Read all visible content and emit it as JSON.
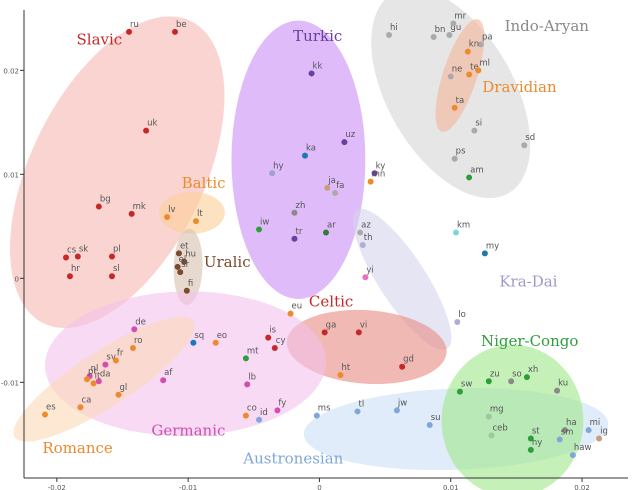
{
  "chart_data": {
    "type": "scatter",
    "title": "",
    "xlabel": "",
    "ylabel": "",
    "xlim": [
      -0.0225,
      0.0235
    ],
    "ylim": [
      -0.0192,
      0.0258
    ],
    "x_ticks": [
      -0.02,
      -0.01,
      0,
      0.01,
      0.02
    ],
    "y_ticks": [
      -0.01,
      0,
      0.01,
      0.02
    ],
    "x_tick_labels": [
      "-0.02",
      "-0.01",
      "0",
      "0.01",
      "0.02"
    ],
    "y_tick_labels": [
      "-0.01",
      "0",
      "0.01",
      "0.02"
    ],
    "families": [
      {
        "name": "Slavic",
        "color": "#c62828",
        "fill": "#f7b8b0",
        "label_at": [
          -0.0185,
          0.0225
        ],
        "ellipse": {
          "cx": -0.0154,
          "cy": 0.0102,
          "rx": 0.0128,
          "ry": 0.0066,
          "angle": -64
        }
      },
      {
        "name": "Baltic",
        "color": "#ee8a2e",
        "fill": "#fbcf9a",
        "label_at": [
          -0.0105,
          0.0087
        ],
        "ellipse": {
          "cx": -0.0097,
          "cy": 0.0063,
          "rx": 0.0025,
          "ry": 0.0016,
          "angle": 0
        }
      },
      {
        "name": "Uralic",
        "color": "#7b4a2e",
        "fill": "#d9c0ae",
        "label_at": [
          -0.0088,
          0.0011
        ],
        "ellipse": {
          "cx": -0.01,
          "cy": 0.0011,
          "rx": 0.0029,
          "ry": 0.0011,
          "angle": -88
        }
      },
      {
        "name": "Turkic",
        "color": "#6a3fa0",
        "fill": "#c98ef6",
        "label_at": [
          -0.002,
          0.0228
        ],
        "ellipse": {
          "cx": -0.0016,
          "cy": 0.0114,
          "rx": 0.0106,
          "ry": 0.0051,
          "angle": 90
        }
      },
      {
        "name": "Indo-Aryan",
        "color": "#8a8a8a",
        "fill": "#d6d6d6",
        "label_at": [
          0.0141,
          0.0238
        ],
        "ellipse": {
          "cx": 0.01,
          "cy": 0.0178,
          "rx": 0.0088,
          "ry": 0.0048,
          "angle": 60
        }
      },
      {
        "name": "Dravidian",
        "color": "#ee8a2e",
        "fill": "#f5b59a",
        "label_at": [
          0.0124,
          0.0179
        ],
        "ellipse": {
          "cx": 0.0107,
          "cy": 0.0195,
          "rx": 0.0045,
          "ry": 0.0013,
          "angle": -72
        }
      },
      {
        "name": "Kra-Dai",
        "color": "#9f98c8",
        "fill": "#d6d3ec",
        "label_at": [
          0.0137,
          -0.0008
        ],
        "ellipse": {
          "cx": 0.0063,
          "cy": -0.0001,
          "rx": 0.0063,
          "ry": 0.0018,
          "angle": 57
        }
      },
      {
        "name": "Celtic",
        "color": "#c62828",
        "fill": "#e88a82",
        "label_at": [
          -0.0008,
          -0.0027
        ],
        "ellipse": {
          "cx": 0.0036,
          "cy": -0.0066,
          "rx": 0.0061,
          "ry": 0.0028,
          "angle": 4
        }
      },
      {
        "name": "Germanic",
        "color": "#d04faf",
        "fill": "#f3c1ec",
        "label_at": [
          -0.0128,
          -0.0151
        ],
        "ellipse": {
          "cx": -0.0102,
          "cy": -0.0082,
          "rx": 0.0107,
          "ry": 0.0055,
          "angle": -1
        }
      },
      {
        "name": "Romance",
        "color": "#ee8a2e",
        "fill": "#fbd8b8",
        "label_at": [
          -0.0211,
          -0.0168
        ],
        "ellipse": {
          "cx": -0.0164,
          "cy": -0.0097,
          "rx": 0.0081,
          "ry": 0.0021,
          "angle": -33
        }
      },
      {
        "name": "Austronesian",
        "color": "#7fa7d8",
        "fill": "#cce0f6",
        "label_at": [
          -0.0058,
          -0.0178
        ],
        "ellipse": {
          "cx": 0.0104,
          "cy": -0.0145,
          "rx": 0.0116,
          "ry": 0.0031,
          "angle": -2
        }
      },
      {
        "name": "Niger-Congo",
        "color": "#2e9e3a",
        "fill": "#9ee88a",
        "label_at": [
          0.0123,
          -0.0065
        ],
        "ellipse": {
          "cx": 0.0147,
          "cy": -0.0137,
          "rx": 0.0054,
          "ry": 0.0058,
          "angle": 0
        }
      }
    ],
    "points": [
      {
        "label": "ru",
        "x": -0.0145,
        "y": 0.0237,
        "family": "Slavic",
        "color": "#c62828"
      },
      {
        "label": "be",
        "x": -0.011,
        "y": 0.0237,
        "family": "Slavic",
        "color": "#c62828"
      },
      {
        "label": "uk",
        "x": -0.0132,
        "y": 0.0142,
        "family": "Slavic",
        "color": "#c62828"
      },
      {
        "label": "bg",
        "x": -0.0168,
        "y": 0.0069,
        "family": "Slavic",
        "color": "#c62828"
      },
      {
        "label": "mk",
        "x": -0.0143,
        "y": 0.0062,
        "family": "Slavic",
        "color": "#c62828"
      },
      {
        "label": "cs",
        "x": -0.0193,
        "y": 0.002,
        "family": "Slavic",
        "color": "#c62828"
      },
      {
        "label": "sk",
        "x": -0.0184,
        "y": 0.0021,
        "family": "Slavic",
        "color": "#c62828"
      },
      {
        "label": "pl",
        "x": -0.0158,
        "y": 0.0021,
        "family": "Slavic",
        "color": "#c62828"
      },
      {
        "label": "hr",
        "x": -0.019,
        "y": 0.0002,
        "family": "Slavic",
        "color": "#c62828"
      },
      {
        "label": "sl",
        "x": -0.0158,
        "y": 0.0002,
        "family": "Slavic",
        "color": "#c62828"
      },
      {
        "label": "lv",
        "x": -0.0116,
        "y": 0.0059,
        "family": "Baltic",
        "color": "#ee8a2e"
      },
      {
        "label": "lt",
        "x": -0.0094,
        "y": 0.0055,
        "family": "Baltic",
        "color": "#ee8a2e"
      },
      {
        "label": "et",
        "x": -0.0107,
        "y": 0.0024,
        "family": "Uralic",
        "color": "#7b4a2e"
      },
      {
        "label": "hu",
        "x": -0.0103,
        "y": 0.0016,
        "family": "Uralic",
        "color": "#7b4a2e"
      },
      {
        "label": "el",
        "x": -0.0108,
        "y": 0.0011,
        "family": "Uralic",
        "color": "#7b4a2e"
      },
      {
        "label": "sr",
        "x": -0.0106,
        "y": 0.0006,
        "family": "Uralic",
        "color": "#7b4a2e"
      },
      {
        "label": "fi",
        "x": -0.0101,
        "y": -0.0012,
        "family": "Uralic",
        "color": "#7b4a2e"
      },
      {
        "label": "kk",
        "x": -0.0006,
        "y": 0.0197,
        "family": "Turkic",
        "color": "#6a3fa0"
      },
      {
        "label": "uz",
        "x": 0.0019,
        "y": 0.0131,
        "family": "Turkic",
        "color": "#6a3fa0"
      },
      {
        "label": "ka",
        "x": -0.0011,
        "y": 0.0118,
        "family": "Turkic",
        "color": "#1f78b4"
      },
      {
        "label": "hy",
        "x": -0.0036,
        "y": 0.0101,
        "family": "Turkic",
        "color": "#a0a0c8"
      },
      {
        "label": "ky",
        "x": 0.0042,
        "y": 0.0101,
        "family": "Turkic",
        "color": "#6a3fa0"
      },
      {
        "label": "mn",
        "x": 0.0039,
        "y": 0.0093,
        "family": "Turkic",
        "color": "#ee8a2e"
      },
      {
        "label": "ja",
        "x": 0.0006,
        "y": 0.0087,
        "family": "Turkic",
        "color": "#c99c80"
      },
      {
        "label": "fa",
        "x": 0.0012,
        "y": 0.0082,
        "family": "Turkic",
        "color": "#aaaaaa"
      },
      {
        "label": "zh",
        "x": -0.0019,
        "y": 0.0063,
        "family": "Turkic",
        "color": "#8a8a8a"
      },
      {
        "label": "tr",
        "x": -0.0019,
        "y": 0.0038,
        "family": "Turkic",
        "color": "#6a3fa0"
      },
      {
        "label": "ar",
        "x": 0.0005,
        "y": 0.0044,
        "family": "Turkic",
        "color": "#2e7d32"
      },
      {
        "label": "iw",
        "x": -0.0046,
        "y": 0.0047,
        "family": "Turkic",
        "color": "#2e9e3a"
      },
      {
        "label": "hi",
        "x": 0.0053,
        "y": 0.0234,
        "family": "Indo-Aryan",
        "color": "#aaaaaa"
      },
      {
        "label": "bn",
        "x": 0.0087,
        "y": 0.0232,
        "family": "Indo-Aryan",
        "color": "#aaaaaa"
      },
      {
        "label": "gu",
        "x": 0.0099,
        "y": 0.0234,
        "family": "Indo-Aryan",
        "color": "#aaaaaa"
      },
      {
        "label": "mr",
        "x": 0.0102,
        "y": 0.0245,
        "family": "Indo-Aryan",
        "color": "#aaaaaa"
      },
      {
        "label": "pa",
        "x": 0.0123,
        "y": 0.0225,
        "family": "Indo-Aryan",
        "color": "#aaaaaa"
      },
      {
        "label": "kn",
        "x": 0.0113,
        "y": 0.0218,
        "family": "Dravidian",
        "color": "#ee8a2e"
      },
      {
        "label": "ne",
        "x": 0.01,
        "y": 0.0194,
        "family": "Indo-Aryan",
        "color": "#aaaaaa"
      },
      {
        "label": "te",
        "x": 0.0114,
        "y": 0.0196,
        "family": "Dravidian",
        "color": "#ee8a2e"
      },
      {
        "label": "ml",
        "x": 0.0121,
        "y": 0.02,
        "family": "Dravidian",
        "color": "#ee8a2e"
      },
      {
        "label": "ta",
        "x": 0.0103,
        "y": 0.0164,
        "family": "Dravidian",
        "color": "#ee8a2e"
      },
      {
        "label": "si",
        "x": 0.0118,
        "y": 0.0142,
        "family": "Indo-Aryan",
        "color": "#aaaaaa"
      },
      {
        "label": "sd",
        "x": 0.0156,
        "y": 0.0128,
        "family": "Indo-Aryan",
        "color": "#aaaaaa"
      },
      {
        "label": "ps",
        "x": 0.0103,
        "y": 0.0115,
        "family": "Indo-Aryan",
        "color": "#aaaaaa"
      },
      {
        "label": "am",
        "x": 0.0114,
        "y": 0.0097,
        "family": "Indo-Aryan",
        "color": "#2e9e3a"
      },
      {
        "label": "az",
        "x": 0.0031,
        "y": 0.0044,
        "family": "Kra-Dai",
        "color": "#aaaaaa"
      },
      {
        "label": "th",
        "x": 0.0033,
        "y": 0.0032,
        "family": "Kra-Dai",
        "color": "#b0acd6"
      },
      {
        "label": "km",
        "x": 0.0104,
        "y": 0.0044,
        "family": "Kra-Dai",
        "color": "#80d4d4"
      },
      {
        "label": "my",
        "x": 0.0126,
        "y": 0.0024,
        "family": "Kra-Dai",
        "color": "#1f78b4"
      },
      {
        "label": "yi",
        "x": 0.0035,
        "y": 0.0001,
        "family": "Kra-Dai",
        "color": "#e870c0"
      },
      {
        "label": "lo",
        "x": 0.0105,
        "y": -0.0042,
        "family": "Kra-Dai",
        "color": "#b0acd6"
      },
      {
        "label": "eu",
        "x": -0.0022,
        "y": -0.0034,
        "family": "Celtic",
        "color": "#ee8a2e"
      },
      {
        "label": "is",
        "x": -0.0039,
        "y": -0.0057,
        "family": "Celtic",
        "color": "#c62828"
      },
      {
        "label": "cy",
        "x": -0.0034,
        "y": -0.0067,
        "family": "Celtic",
        "color": "#c62828"
      },
      {
        "label": "ga",
        "x": 0.0004,
        "y": -0.0052,
        "family": "Celtic",
        "color": "#c62828"
      },
      {
        "label": "vi",
        "x": 0.003,
        "y": -0.0052,
        "family": "Celtic",
        "color": "#c62828"
      },
      {
        "label": "ht",
        "x": 0.0016,
        "y": -0.0093,
        "family": "Celtic",
        "color": "#ee8a2e"
      },
      {
        "label": "gd",
        "x": 0.0063,
        "y": -0.0085,
        "family": "Celtic",
        "color": "#c62828"
      },
      {
        "label": "de",
        "x": -0.0141,
        "y": -0.0049,
        "family": "Germanic",
        "color": "#d04faf"
      },
      {
        "label": "sq",
        "x": -0.0096,
        "y": -0.0062,
        "family": "Germanic",
        "color": "#1f78b4"
      },
      {
        "label": "eo",
        "x": -0.0079,
        "y": -0.0062,
        "family": "Germanic",
        "color": "#ee8a2e"
      },
      {
        "label": "mt",
        "x": -0.0056,
        "y": -0.0077,
        "family": "Germanic",
        "color": "#2e9e3a"
      },
      {
        "label": "af",
        "x": -0.0119,
        "y": -0.0098,
        "family": "Germanic",
        "color": "#d04faf"
      },
      {
        "label": "lb",
        "x": -0.0055,
        "y": -0.0102,
        "family": "Germanic",
        "color": "#d04faf"
      },
      {
        "label": "sv",
        "x": -0.0163,
        "y": -0.0083,
        "family": "Germanic",
        "color": "#d04faf"
      },
      {
        "label": "nl",
        "x": -0.0175,
        "y": -0.0094,
        "family": "Germanic",
        "color": "#d04faf"
      },
      {
        "label": "da",
        "x": -0.0168,
        "y": -0.0099,
        "family": "Germanic",
        "color": "#d04faf"
      },
      {
        "label": "ro",
        "x": -0.0142,
        "y": -0.0067,
        "family": "Romance",
        "color": "#ee8a2e"
      },
      {
        "label": "fr",
        "x": -0.0155,
        "y": -0.0079,
        "family": "Romance",
        "color": "#ee8a2e"
      },
      {
        "label": "pt",
        "x": -0.0177,
        "y": -0.0097,
        "family": "Romance",
        "color": "#ee8a2e"
      },
      {
        "label": "it",
        "x": -0.0172,
        "y": -0.0101,
        "family": "Romance",
        "color": "#ee8a2e"
      },
      {
        "label": "gl",
        "x": -0.0153,
        "y": -0.0112,
        "family": "Romance",
        "color": "#ee8a2e"
      },
      {
        "label": "ca",
        "x": -0.0182,
        "y": -0.0124,
        "family": "Romance",
        "color": "#ee8a2e"
      },
      {
        "label": "es",
        "x": -0.0209,
        "y": -0.0131,
        "family": "Romance",
        "color": "#ee8a2e"
      },
      {
        "label": "co",
        "x": -0.0056,
        "y": -0.0132,
        "family": "Austronesian",
        "color": "#ee8a2e"
      },
      {
        "label": "id",
        "x": -0.0046,
        "y": -0.0136,
        "family": "Austronesian",
        "color": "#7fa7d8"
      },
      {
        "label": "fy",
        "x": -0.0032,
        "y": -0.0127,
        "family": "Austronesian",
        "color": "#d04faf"
      },
      {
        "label": "ms",
        "x": -0.0002,
        "y": -0.0132,
        "family": "Austronesian",
        "color": "#7fa7d8"
      },
      {
        "label": "tl",
        "x": 0.0029,
        "y": -0.0128,
        "family": "Austronesian",
        "color": "#7fa7d8"
      },
      {
        "label": "jw",
        "x": 0.0059,
        "y": -0.0127,
        "family": "Austronesian",
        "color": "#7fa7d8"
      },
      {
        "label": "su",
        "x": 0.0084,
        "y": -0.0141,
        "family": "Austronesian",
        "color": "#7fa7d8"
      },
      {
        "label": "zu",
        "x": 0.0129,
        "y": -0.0099,
        "family": "Niger-Congo",
        "color": "#2e9e3a"
      },
      {
        "label": "so",
        "x": 0.0146,
        "y": -0.0099,
        "family": "Niger-Congo",
        "color": "#8a8a8a"
      },
      {
        "label": "xh",
        "x": 0.0158,
        "y": -0.0095,
        "family": "Niger-Congo",
        "color": "#2e9e3a"
      },
      {
        "label": "ku",
        "x": 0.0181,
        "y": -0.0108,
        "family": "Niger-Congo",
        "color": "#8a8a8a"
      },
      {
        "label": "sw",
        "x": 0.0107,
        "y": -0.0109,
        "family": "Niger-Congo",
        "color": "#2e9e3a"
      },
      {
        "label": "mg",
        "x": 0.0129,
        "y": -0.0133,
        "family": "Niger-Congo",
        "color": "#9cc89c"
      },
      {
        "label": "ceb",
        "x": 0.0131,
        "y": -0.0151,
        "family": "Niger-Congo",
        "color": "#9cc89c"
      },
      {
        "label": "st",
        "x": 0.0161,
        "y": -0.0154,
        "family": "Niger-Congo",
        "color": "#2e9e3a"
      },
      {
        "label": "ny",
        "x": 0.0161,
        "y": -0.0165,
        "family": "Niger-Congo",
        "color": "#2e9e3a"
      },
      {
        "label": "ha",
        "x": 0.0187,
        "y": -0.0146,
        "family": "Niger-Congo",
        "color": "#8a8a8a"
      },
      {
        "label": "sm",
        "x": 0.0183,
        "y": -0.0155,
        "family": "Niger-Congo",
        "color": "#7fa7d8"
      },
      {
        "label": "mi",
        "x": 0.0205,
        "y": -0.0146,
        "family": "Niger-Congo",
        "color": "#7fa7d8"
      },
      {
        "label": "ig",
        "x": 0.0213,
        "y": -0.0154,
        "family": "Niger-Congo",
        "color": "#c99c80"
      },
      {
        "label": "haw",
        "x": 0.0193,
        "y": -0.017,
        "family": "Niger-Congo",
        "color": "#7fa7d8"
      }
    ]
  }
}
